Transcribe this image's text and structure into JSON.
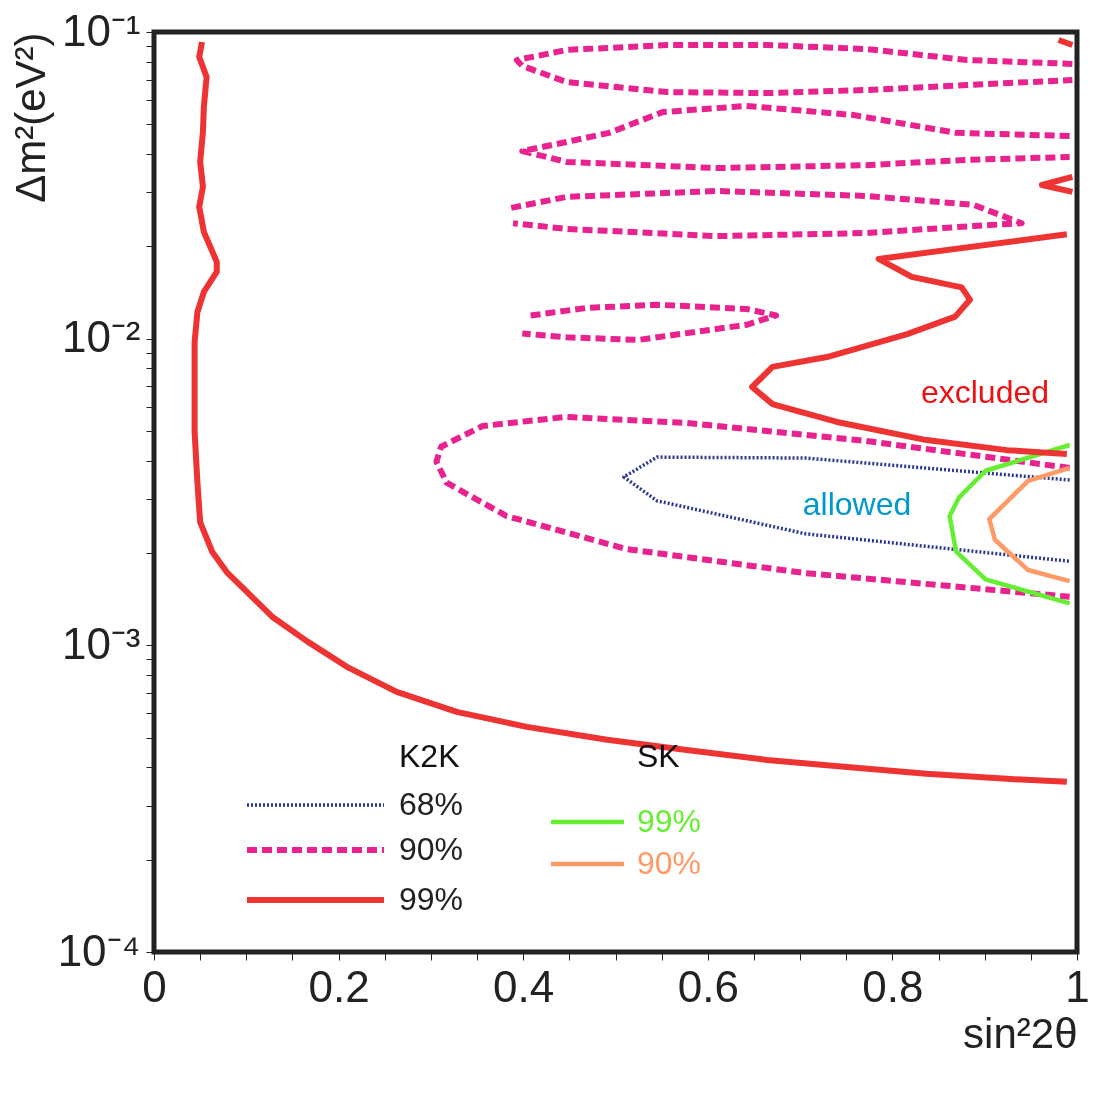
{
  "chart_data": {
    "type": "line",
    "xlabel": "sin²2θ",
    "ylabel": "Δm²(eV²)",
    "xlim": [
      0,
      1
    ],
    "ylim": [
      0.0001,
      0.1
    ],
    "log": "y",
    "grid": false,
    "legend": "bottom",
    "xticks": [
      0,
      {
        "value": 0.05,
        "label": null
      },
      {
        "value": 0.1,
        "label": null
      },
      {
        "value": 0.15,
        "label": null
      },
      0.2,
      {
        "value": 0.25,
        "label": null
      },
      {
        "value": 0.3,
        "label": null
      },
      {
        "value": 0.35,
        "label": null
      },
      0.4,
      {
        "value": 0.45,
        "label": null
      },
      {
        "value": 0.5,
        "label": null
      },
      {
        "value": 0.55,
        "label": null
      },
      0.6,
      {
        "value": 0.65,
        "label": null
      },
      {
        "value": 0.7,
        "label": null
      },
      {
        "value": 0.75,
        "label": null
      },
      0.8,
      {
        "value": 0.85,
        "label": null
      },
      {
        "value": 0.9,
        "label": null
      },
      {
        "value": 0.95,
        "label": null
      },
      1
    ],
    "yticks": [
      {
        "value": 0.0001,
        "label": "10⁻⁴"
      },
      {
        "value": 0.0002,
        "label": null
      },
      {
        "value": 0.0003,
        "label": null
      },
      {
        "value": 0.0004,
        "label": null
      },
      {
        "value": 0.0005,
        "label": null
      },
      {
        "value": 0.0006,
        "label": null
      },
      {
        "value": 0.0007,
        "label": null
      },
      {
        "value": 0.0008,
        "label": null
      },
      {
        "value": 0.0009,
        "label": null
      },
      {
        "value": 0.001,
        "label": "10⁻³"
      },
      {
        "value": 0.002,
        "label": null
      },
      {
        "value": 0.003,
        "label": null
      },
      {
        "value": 0.004,
        "label": null
      },
      {
        "value": 0.005,
        "label": null
      },
      {
        "value": 0.006,
        "label": null
      },
      {
        "value": 0.007,
        "label": null
      },
      {
        "value": 0.008,
        "label": null
      },
      {
        "value": 0.009,
        "label": null
      },
      {
        "value": 0.01,
        "label": "10⁻²"
      },
      {
        "value": 0.02,
        "label": null
      },
      {
        "value": 0.03,
        "label": null
      },
      {
        "value": 0.04,
        "label": null
      },
      {
        "value": 0.05,
        "label": null
      },
      {
        "value": 0.06,
        "label": null
      },
      {
        "value": 0.07,
        "label": null
      },
      {
        "value": 0.08,
        "label": null
      },
      {
        "value": 0.09,
        "label": null
      },
      {
        "value": 0.1,
        "label": "10⁻¹"
      }
    ],
    "annotations": [
      "K2K",
      "SK",
      "excluded",
      "allowed"
    ],
    "series": [
      {
        "name": "68%",
        "color": "#2b3990",
        "line_style": "dotted",
        "x": [
          0.992,
          0.706,
          0.545,
          0.509,
          0.545,
          0.706,
          0.992
        ],
        "values": [
          0.00346,
          0.00408,
          0.00411,
          0.00354,
          0.00296,
          0.00231,
          0.00188
        ]
      },
      {
        "name": "90%",
        "color": "#e8228f",
        "line_style": "dashed",
        "x": [
          0.992,
          0.771,
          0.577,
          0.447,
          0.356,
          0.311,
          0.306,
          0.317,
          0.382,
          0.512,
          0.706,
          0.992
        ],
        "values": [
          0.00379,
          0.00464,
          0.00531,
          0.00556,
          0.00519,
          0.00444,
          0.00397,
          0.00339,
          0.00264,
          0.00206,
          0.00172,
          0.00144
        ]
      },
      {
        "name": "99%",
        "color": "#ee3333",
        "line_style": "solid",
        "x": [
          0.052,
          0.049,
          0.057,
          0.054,
          0.053,
          0.05,
          0.053,
          0.049,
          0.054,
          0.068,
          0.068,
          0.054,
          0.047,
          0.044,
          0.044,
          0.044,
          0.047,
          0.05,
          0.063,
          0.079,
          0.101,
          0.128,
          0.166,
          0.209,
          0.263,
          0.328,
          0.404,
          0.491,
          0.577,
          0.664,
          0.751,
          0.837,
          0.924,
          0.989
        ],
        "values": [
          0.0928,
          0.0829,
          0.0713,
          0.0569,
          0.0472,
          0.0377,
          0.0313,
          0.0269,
          0.0223,
          0.0178,
          0.0165,
          0.0142,
          0.0122,
          0.00975,
          0.00723,
          0.00497,
          0.00341,
          0.00252,
          0.00202,
          0.00173,
          0.00149,
          0.00124,
          0.00103,
          0.000851,
          0.000705,
          0.000607,
          0.000542,
          0.000492,
          0.000456,
          0.000423,
          0.000401,
          0.000381,
          0.000367,
          0.000359
        ]
      },
      {
        "name": "99%",
        "color": "#66ee33",
        "line_style": "solid",
        "x": [
          0.992,
          0.901,
          0.872,
          0.862,
          0.869,
          0.901,
          0.992
        ],
        "values": [
          0.0045,
          0.00371,
          0.00303,
          0.00264,
          0.00202,
          0.00164,
          0.00137
        ]
      },
      {
        "name": "90%",
        "color": "#ff9966",
        "line_style": "solid",
        "x": [
          0.992,
          0.947,
          0.905,
          0.911,
          0.947,
          0.992
        ],
        "values": [
          0.00379,
          0.00344,
          0.00258,
          0.00221,
          0.00176,
          0.00162
        ]
      },
      {
        "color": "#e8228f",
        "line_style": "dashed",
        "x": [
          0.995,
          0.881,
          0.772,
          0.664,
          0.556,
          0.447,
          0.393,
          0.399,
          0.447,
          0.556,
          0.664,
          0.772,
          0.881,
          0.995
        ],
        "values": [
          0.0787,
          0.081,
          0.088,
          0.0907,
          0.0907,
          0.0874,
          0.081,
          0.0775,
          0.0687,
          0.0637,
          0.0632,
          0.0647,
          0.0672,
          0.0697
        ]
      },
      {
        "color": "#e8228f",
        "line_style": "dashed",
        "x": [
          0.992,
          0.869,
          0.758,
          0.642,
          0.551,
          0.493,
          0.447,
          0.399,
          0.447,
          0.61,
          0.772,
          0.881,
          0.992
        ],
        "values": [
          0.0458,
          0.0469,
          0.0536,
          0.0574,
          0.0548,
          0.0469,
          0.0438,
          0.0409,
          0.0377,
          0.036,
          0.0368,
          0.0383,
          0.0391
        ]
      },
      {
        "color": "#e8228f",
        "line_style": "dashed",
        "x": [
          0.387,
          0.447,
          0.61,
          0.771,
          0.888,
          0.94,
          0.888,
          0.771,
          0.61,
          0.447,
          0.389
        ],
        "values": [
          0.0267,
          0.029,
          0.0303,
          0.0292,
          0.0273,
          0.0238,
          0.0233,
          0.0221,
          0.0216,
          0.0228,
          0.0238
        ]
      },
      {
        "color": "#e8228f",
        "line_style": "dashed",
        "x": [
          0.408,
          0.469,
          0.545,
          0.642,
          0.674,
          0.642,
          0.525,
          0.447,
          0.399
        ],
        "values": [
          0.0119,
          0.0126,
          0.0129,
          0.0125,
          0.0119,
          0.0111,
          0.00991,
          0.0101,
          0.0104
        ]
      },
      {
        "color": "#ee3333",
        "line_style": "solid",
        "x": [
          0.989,
          0.785,
          0.821,
          0.875,
          0.884,
          0.868,
          0.816,
          0.729,
          0.67,
          0.648,
          0.67,
          0.74,
          0.837,
          0.924,
          0.989
        ],
        "values": [
          0.0219,
          0.0182,
          0.0159,
          0.0147,
          0.0134,
          0.0118,
          0.01035,
          0.00871,
          0.00809,
          0.00696,
          0.00612,
          0.00535,
          0.00467,
          0.00433,
          0.00421
        ]
      },
      {
        "color": "#ee3333",
        "line_style": "solid",
        "x": [
          0.98,
          0.995
        ],
        "values": [
          0.0942,
          0.0907
        ]
      },
      {
        "color": "#ee3333",
        "line_style": "solid",
        "x": [
          0.995,
          0.962,
          0.995
        ],
        "values": [
          0.0337,
          0.0317,
          0.0301
        ]
      }
    ]
  }
}
